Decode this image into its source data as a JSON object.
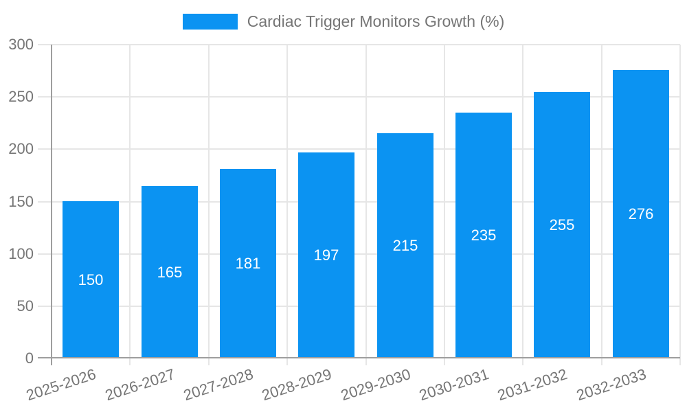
{
  "colors": {
    "bar": "#0B93F2",
    "axis_text": "#757575",
    "grid_line": "#E6E6E6",
    "axis_line": "#9E9E9E",
    "value_label_text": "#FFFFFF",
    "background": "#FFFFFF"
  },
  "legend": {
    "label": "Cardiac Trigger Monitors Growth (%)"
  },
  "chart_data": {
    "type": "bar",
    "title": "Cardiac Trigger Monitors Growth (%)",
    "categories": [
      "2025-2026",
      "2026-2027",
      "2027-2028",
      "2028-2029",
      "2029-2030",
      "2030-2031",
      "2031-2032",
      "2032-2033"
    ],
    "values": [
      150,
      165,
      181,
      197,
      215,
      235,
      255,
      276
    ],
    "xlabel": "",
    "ylabel": "",
    "ylim": [
      0,
      300
    ],
    "ytick_step": 50,
    "yticks": [
      0,
      50,
      100,
      150,
      200,
      250,
      300
    ],
    "grid": true,
    "legend_position": "top-center",
    "value_labels_position": "inside-center",
    "x_tick_rotation_deg": -18,
    "bar_color": "#0B93F2"
  }
}
